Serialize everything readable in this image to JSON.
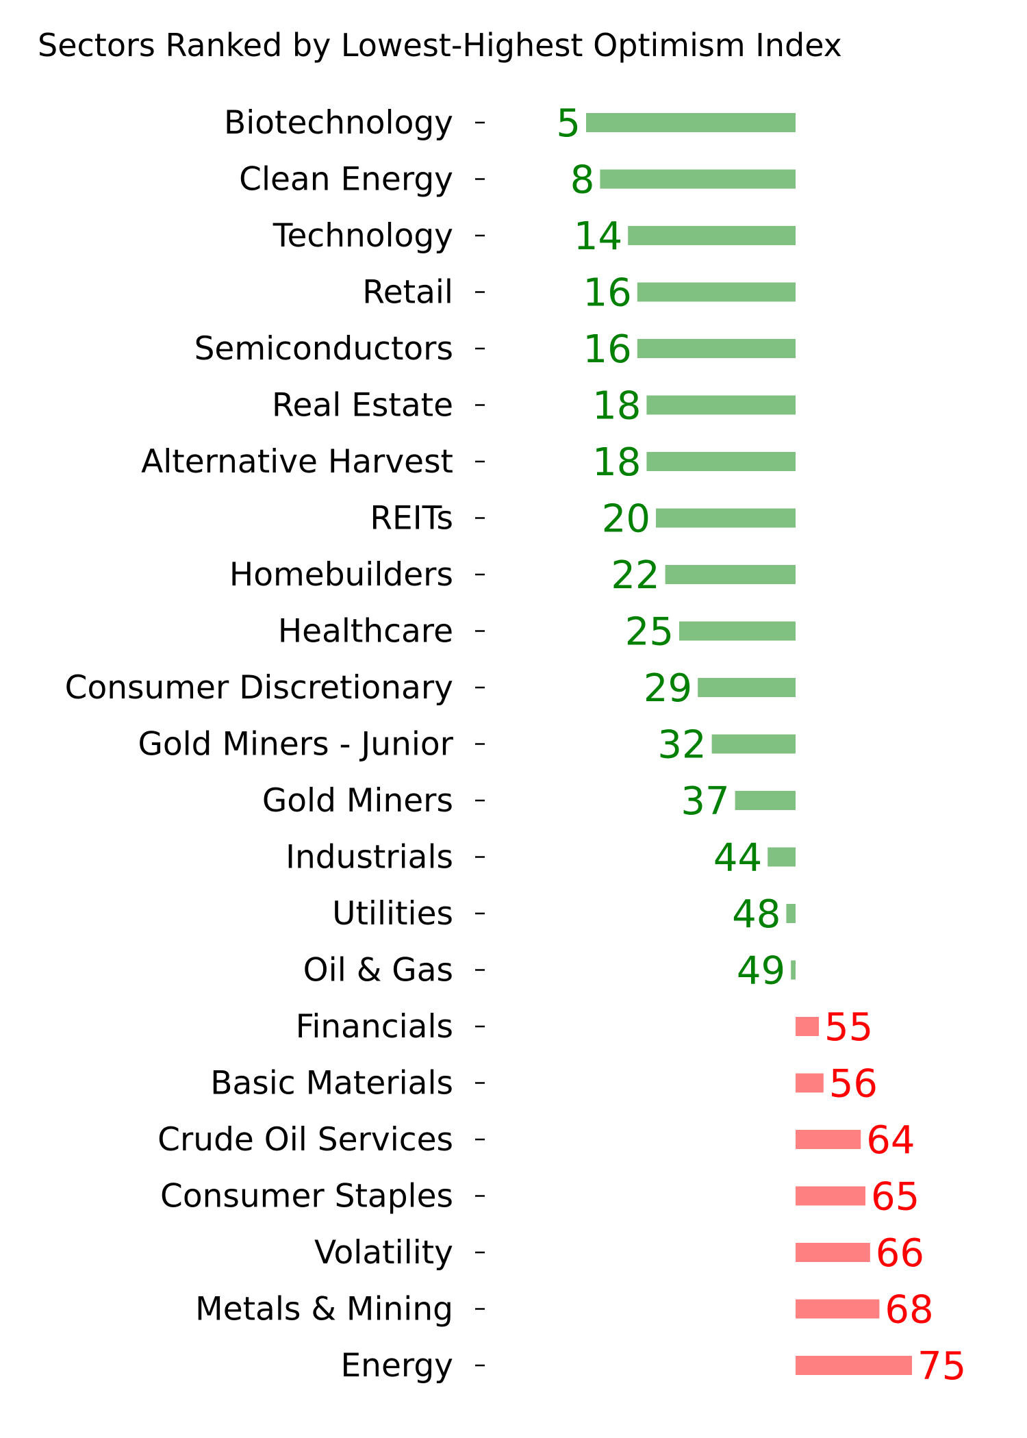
{
  "chart_data": {
    "type": "bar",
    "orientation": "horizontal",
    "title": "Sectors Ranked by Lowest-Highest Optimism Index",
    "xlabel": "",
    "ylabel": "",
    "baseline": 50,
    "grid": false,
    "legend": "none",
    "colors": {
      "below_baseline_bar": "#80c080",
      "below_baseline_text": "#008000",
      "above_baseline_bar": "#ff8080",
      "above_baseline_text": "#ff0000"
    },
    "categories": [
      "Biotechnology",
      "Clean Energy",
      "Technology",
      "Retail",
      "Semiconductors",
      "Real Estate",
      "Alternative Harvest",
      "REITs",
      "Homebuilders",
      "Healthcare",
      "Consumer Discretionary",
      "Gold Miners - Junior",
      "Gold Miners",
      "Industrials",
      "Utilities",
      "Oil & Gas",
      "Financials",
      "Basic Materials",
      "Crude Oil Services",
      "Consumer Staples",
      "Volatility",
      "Metals & Mining",
      "Energy"
    ],
    "values": [
      5,
      8,
      14,
      16,
      16,
      18,
      18,
      20,
      22,
      25,
      29,
      32,
      37,
      44,
      48,
      49,
      55,
      56,
      64,
      65,
      66,
      68,
      75
    ],
    "value_labels": [
      "5",
      "8",
      "14",
      "16",
      "16",
      "18",
      "18",
      "20",
      "22",
      "25",
      "29",
      "32",
      "37",
      "44",
      "48",
      "49",
      "55",
      "56",
      "64",
      "65",
      "66",
      "68",
      "75"
    ]
  }
}
